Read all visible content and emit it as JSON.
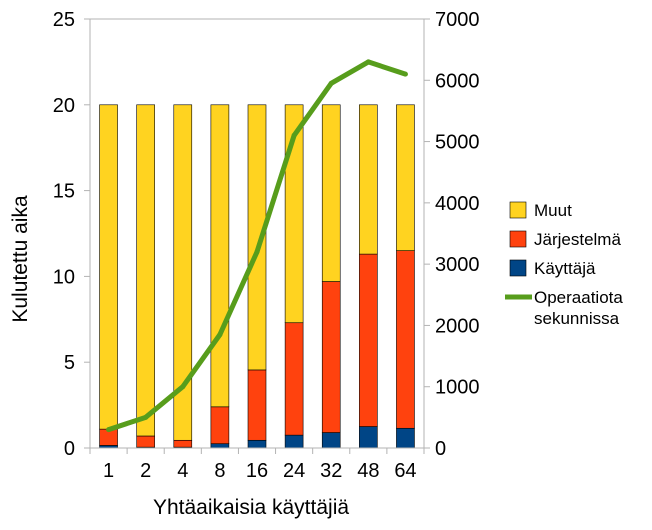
{
  "chart_data": {
    "type": "bar",
    "stacked": true,
    "xlabel": "Yhtäaikaisia käyttäjiä",
    "ylabel": "Kulutettu aika",
    "ylim": [
      0,
      25
    ],
    "yticks": [
      "0",
      "5",
      "10",
      "15",
      "20",
      "25"
    ],
    "y2lim": [
      0,
      7000
    ],
    "y2ticks": [
      "0",
      "1000",
      "2000",
      "3000",
      "4000",
      "5000",
      "6000",
      "7000"
    ],
    "grid": false,
    "legend_position": "right",
    "categories": [
      "1",
      "2",
      "4",
      "8",
      "16",
      "24",
      "32",
      "48",
      "64"
    ],
    "series": [
      {
        "name": "Käyttäjä",
        "type": "bar",
        "axis": "left",
        "color": "#004586",
        "values": [
          0.15,
          0.05,
          0.05,
          0.25,
          0.45,
          0.75,
          0.9,
          1.25,
          1.15
        ]
      },
      {
        "name": "Järjestelmä",
        "type": "bar",
        "axis": "left",
        "color": "#ff420e",
        "values": [
          0.95,
          0.65,
          0.4,
          2.15,
          4.1,
          6.55,
          8.8,
          10.05,
          10.35
        ]
      },
      {
        "name": "Muut",
        "type": "bar",
        "axis": "left",
        "color": "#ffd320",
        "values": [
          18.9,
          19.3,
          19.55,
          17.6,
          15.45,
          12.7,
          10.3,
          8.7,
          8.5
        ]
      },
      {
        "name": "Operaatiota sekunnissa",
        "type": "line",
        "axis": "right",
        "color": "#579d1c",
        "values": [
          300,
          500,
          1000,
          1850,
          3200,
          5100,
          5950,
          6300,
          6100
        ]
      }
    ],
    "legend": [
      {
        "label": "Muut",
        "color": "#ffd320",
        "marker": "box"
      },
      {
        "label": "Järjestelmä",
        "color": "#ff420e",
        "marker": "box"
      },
      {
        "label": "Käyttäjä",
        "color": "#004586",
        "marker": "box"
      },
      {
        "label": "Operaatiota",
        "label2": "sekunnissa",
        "color": "#579d1c",
        "marker": "line"
      }
    ]
  }
}
